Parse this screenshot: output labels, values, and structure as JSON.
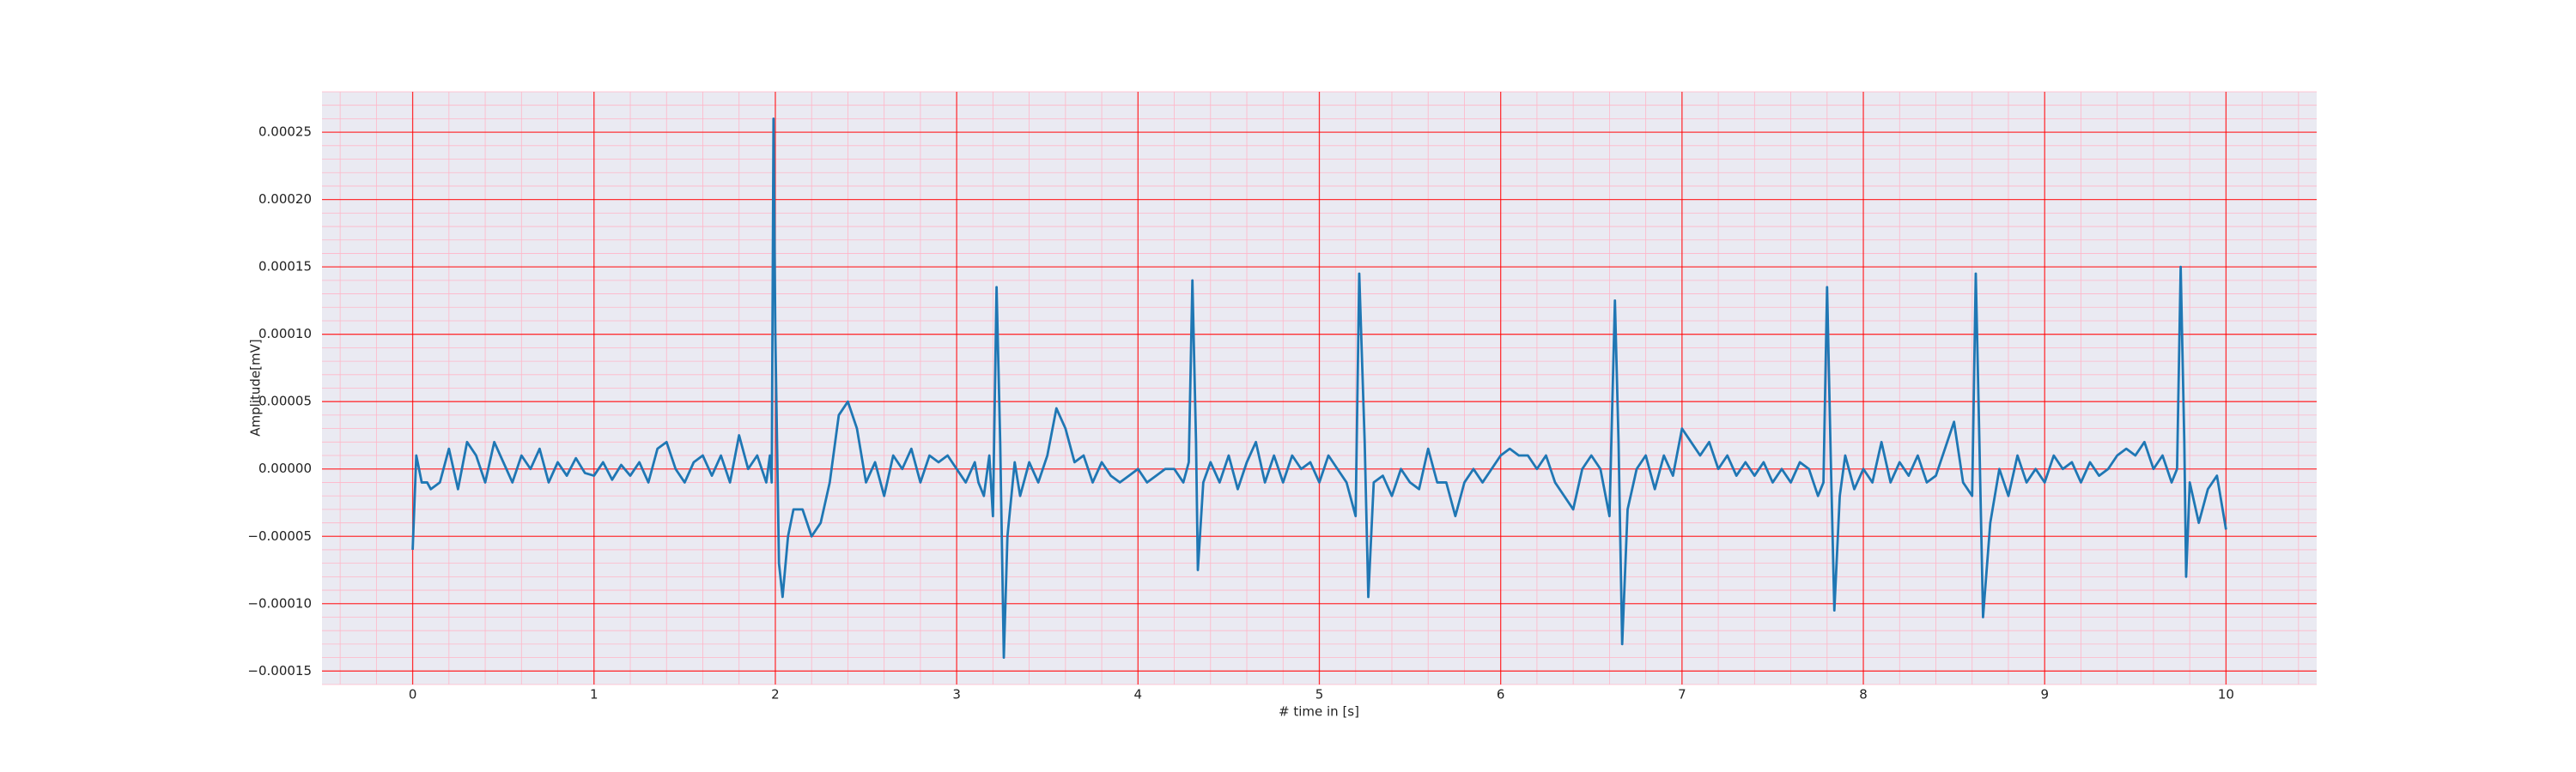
{
  "chart_data": {
    "type": "line",
    "xlabel": "# time in [s]",
    "ylabel": "Amplitude[mV]",
    "xlim": [
      -0.5,
      10.5
    ],
    "ylim": [
      -0.00016,
      0.00028
    ],
    "xticks": [
      0,
      1,
      2,
      3,
      4,
      5,
      6,
      7,
      8,
      9,
      10
    ],
    "yticks": [
      {
        "value": -0.00015,
        "label": "−0.00015"
      },
      {
        "value": -0.0001,
        "label": "−0.00010"
      },
      {
        "value": -5e-05,
        "label": "−0.00005"
      },
      {
        "value": 0,
        "label": "0.00000"
      },
      {
        "value": 5e-05,
        "label": "0.00005"
      },
      {
        "value": 0.0001,
        "label": "0.00010"
      },
      {
        "value": 0.00015,
        "label": "0.00015"
      },
      {
        "value": 0.0002,
        "label": "0.00020"
      },
      {
        "value": 0.00025,
        "label": "0.00025"
      }
    ],
    "grid": true,
    "minor_grid": true,
    "grid_color": "#ff0000",
    "minor_grid_color": "#ffb6c8",
    "background": "#eaeaf2",
    "series": [
      {
        "color": "#1f77b4",
        "x": [
          0,
          0.02,
          0.05,
          0.08,
          0.1,
          0.15,
          0.2,
          0.25,
          0.3,
          0.35,
          0.4,
          0.45,
          0.5,
          0.55,
          0.6,
          0.65,
          0.7,
          0.75,
          0.8,
          0.85,
          0.9,
          0.95,
          1.0,
          1.05,
          1.1,
          1.15,
          1.2,
          1.25,
          1.3,
          1.35,
          1.4,
          1.45,
          1.5,
          1.55,
          1.6,
          1.65,
          1.7,
          1.75,
          1.8,
          1.85,
          1.9,
          1.95,
          1.97,
          1.98,
          1.99,
          2.0,
          2.02,
          2.04,
          2.07,
          2.1,
          2.15,
          2.2,
          2.25,
          2.3,
          2.35,
          2.4,
          2.45,
          2.5,
          2.55,
          2.6,
          2.65,
          2.7,
          2.75,
          2.8,
          2.85,
          2.9,
          2.95,
          3.0,
          3.05,
          3.1,
          3.12,
          3.15,
          3.18,
          3.2,
          3.22,
          3.24,
          3.26,
          3.28,
          3.32,
          3.35,
          3.4,
          3.45,
          3.5,
          3.55,
          3.6,
          3.65,
          3.7,
          3.75,
          3.8,
          3.85,
          3.9,
          3.95,
          4.0,
          4.05,
          4.1,
          4.15,
          4.2,
          4.25,
          4.28,
          4.3,
          4.32,
          4.33,
          4.36,
          4.4,
          4.45,
          4.5,
          4.55,
          4.6,
          4.65,
          4.7,
          4.75,
          4.8,
          4.85,
          4.9,
          4.95,
          5.0,
          5.05,
          5.1,
          5.15,
          5.2,
          5.22,
          5.25,
          5.27,
          5.3,
          5.35,
          5.4,
          5.45,
          5.5,
          5.55,
          5.6,
          5.65,
          5.7,
          5.75,
          5.8,
          5.85,
          5.9,
          5.95,
          6.0,
          6.05,
          6.1,
          6.15,
          6.2,
          6.25,
          6.3,
          6.35,
          6.4,
          6.45,
          6.5,
          6.55,
          6.6,
          6.63,
          6.65,
          6.67,
          6.7,
          6.75,
          6.8,
          6.85,
          6.9,
          6.95,
          7.0,
          7.05,
          7.1,
          7.15,
          7.2,
          7.25,
          7.3,
          7.35,
          7.4,
          7.45,
          7.5,
          7.55,
          7.6,
          7.65,
          7.7,
          7.75,
          7.78,
          7.8,
          7.82,
          7.84,
          7.87,
          7.9,
          7.95,
          8.0,
          8.05,
          8.1,
          8.15,
          8.2,
          8.25,
          8.3,
          8.35,
          8.4,
          8.45,
          8.5,
          8.55,
          8.6,
          8.62,
          8.64,
          8.66,
          8.7,
          8.75,
          8.8,
          8.85,
          8.9,
          8.95,
          9.0,
          9.05,
          9.1,
          9.15,
          9.2,
          9.25,
          9.3,
          9.35,
          9.4,
          9.45,
          9.5,
          9.55,
          9.6,
          9.65,
          9.7,
          9.73,
          9.75,
          9.77,
          9.78,
          9.8,
          9.85,
          9.9,
          9.95,
          10.0
        ],
        "values": [
          -6e-05,
          1e-05,
          -1e-05,
          -1e-05,
          -1.5e-05,
          -1e-05,
          1.5e-05,
          -1.5e-05,
          2e-05,
          1e-05,
          -1e-05,
          2e-05,
          5e-06,
          -1e-05,
          1e-05,
          0,
          1.5e-05,
          -1e-05,
          5e-06,
          -5e-06,
          8e-06,
          -3e-06,
          -5e-06,
          5e-06,
          -8e-06,
          3e-06,
          -5e-06,
          5e-06,
          -1e-05,
          1.5e-05,
          2e-05,
          0,
          -1e-05,
          5e-06,
          1e-05,
          -5e-06,
          1e-05,
          -1e-05,
          2.5e-05,
          0,
          1e-05,
          -1e-05,
          1e-05,
          -1e-05,
          0.00026,
          0.0001,
          -7e-05,
          -9.5e-05,
          -5e-05,
          -3e-05,
          -3e-05,
          -5e-05,
          -4e-05,
          -1e-05,
          4e-05,
          5e-05,
          3e-05,
          -1e-05,
          5e-06,
          -2e-05,
          1e-05,
          0,
          1.5e-05,
          -1e-05,
          1e-05,
          5e-06,
          1e-05,
          0,
          -1e-05,
          5e-06,
          -1e-05,
          -2e-05,
          1e-05,
          -3.5e-05,
          0.000135,
          2e-05,
          -0.00014,
          -5e-05,
          5e-06,
          -2e-05,
          5e-06,
          -1e-05,
          1e-05,
          4.5e-05,
          3e-05,
          5e-06,
          1e-05,
          -1e-05,
          5e-06,
          -5e-06,
          -1e-05,
          -5e-06,
          0,
          -1e-05,
          -5e-06,
          0,
          0,
          -1e-05,
          5e-06,
          0.00014,
          2e-05,
          -7.5e-05,
          -1e-05,
          5e-06,
          -1e-05,
          1e-05,
          -1.5e-05,
          5e-06,
          2e-05,
          -1e-05,
          1e-05,
          -1e-05,
          1e-05,
          0,
          5e-06,
          -1e-05,
          1e-05,
          0,
          -1e-05,
          -3.5e-05,
          0.000145,
          2e-05,
          -9.5e-05,
          -1e-05,
          -5e-06,
          -2e-05,
          0,
          -1e-05,
          -1.5e-05,
          1.5e-05,
          -1e-05,
          -1e-05,
          -3.5e-05,
          -1e-05,
          0,
          -1e-05,
          0,
          1e-05,
          1.5e-05,
          1e-05,
          1e-05,
          0,
          1e-05,
          -1e-05,
          -2e-05,
          -3e-05,
          0,
          1e-05,
          0,
          -3.5e-05,
          0.000125,
          2e-05,
          -0.00013,
          -3e-05,
          0,
          1e-05,
          -1.5e-05,
          1e-05,
          -5e-06,
          3e-05,
          2e-05,
          1e-05,
          2e-05,
          0,
          1e-05,
          -5e-06,
          5e-06,
          -5e-06,
          5e-06,
          -1e-05,
          0,
          -1e-05,
          5e-06,
          0,
          -2e-05,
          -1e-05,
          0.000135,
          1e-05,
          -0.000105,
          -2e-05,
          1e-05,
          -1.5e-05,
          0,
          -1e-05,
          2e-05,
          -1e-05,
          5e-06,
          -5e-06,
          1e-05,
          -1e-05,
          -5e-06,
          1.5e-05,
          3.5e-05,
          -1e-05,
          -2e-05,
          0.000145,
          2e-05,
          -0.00011,
          -4e-05,
          0,
          -2e-05,
          1e-05,
          -1e-05,
          0,
          -1e-05,
          1e-05,
          0,
          5e-06,
          -1e-05,
          5e-06,
          -5e-06,
          0,
          1e-05,
          1.5e-05,
          1e-05,
          2e-05,
          0,
          1e-05,
          -1e-05,
          0,
          0.00015,
          2e-05,
          -8e-05,
          -1e-05,
          -4e-05,
          -1.5e-05,
          -5e-06,
          -4.5e-05
        ]
      }
    ]
  }
}
